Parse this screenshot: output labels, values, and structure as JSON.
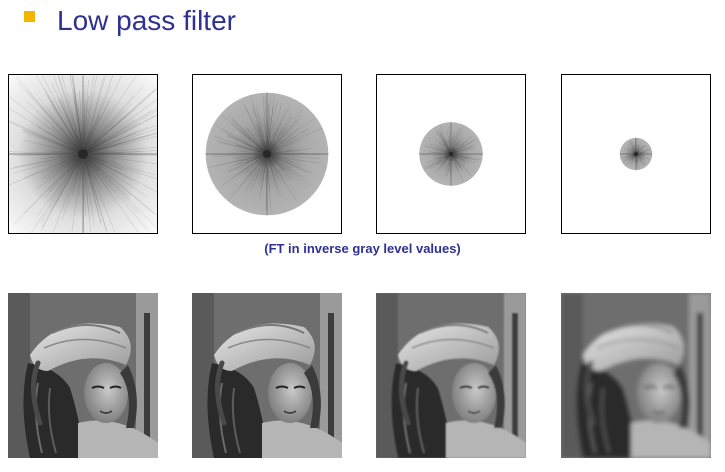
{
  "colors": {
    "bullet": "#f5b400",
    "title": "#2e3192",
    "caption": "#2e3192"
  },
  "slide": {
    "title": "Low pass filter",
    "caption": "(FT in inverse gray level values)"
  },
  "filters": [
    {
      "cutoff_radius_fraction": 1.0
    },
    {
      "cutoff_radius_fraction": 0.83
    },
    {
      "cutoff_radius_fraction": 0.43
    },
    {
      "cutoff_radius_fraction": 0.22
    }
  ],
  "images": [
    {
      "blur": 0
    },
    {
      "blur": 0.3
    },
    {
      "blur": 0.7
    },
    {
      "blur": 2.2
    }
  ]
}
